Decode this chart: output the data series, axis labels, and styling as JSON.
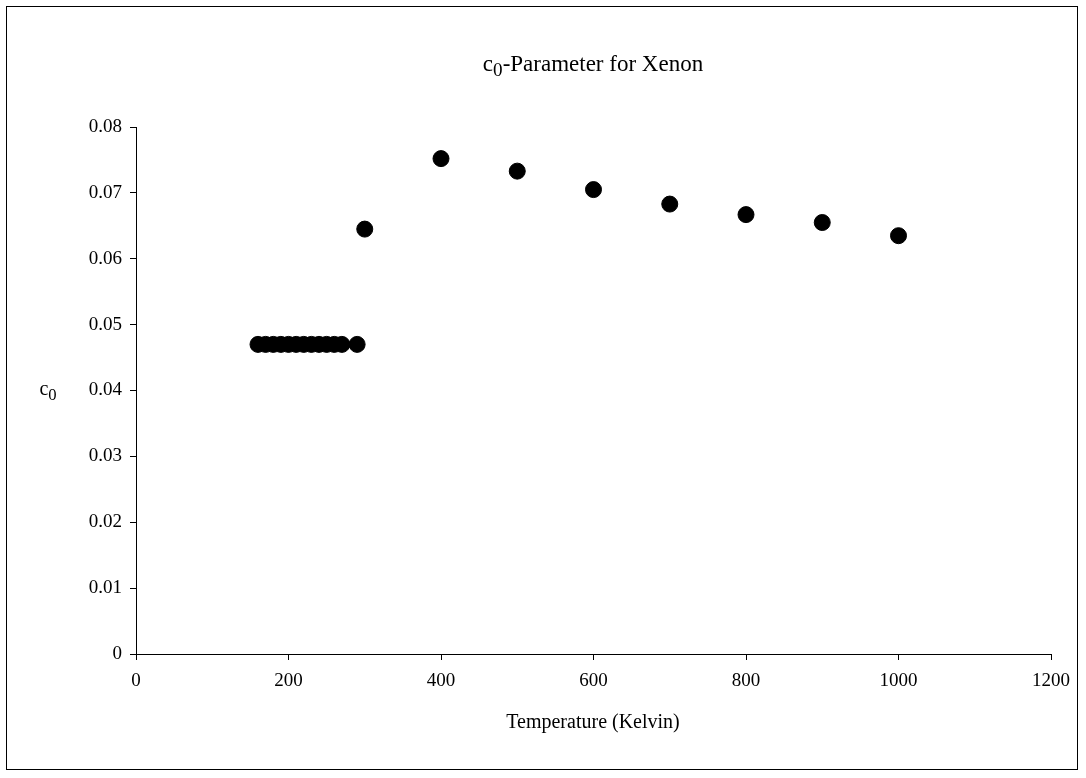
{
  "chart_data": {
    "type": "scatter",
    "title": "c$_{0}$-Parameter for Xenon",
    "xlabel": "Temperature (Kelvin)",
    "ylabel": "c$_{0}$",
    "x": [
      160,
      170,
      180,
      190,
      200,
      210,
      220,
      230,
      240,
      250,
      260,
      270,
      290,
      300,
      400,
      500,
      600,
      700,
      800,
      900,
      1000
    ],
    "values": [
      0.047,
      0.047,
      0.047,
      0.047,
      0.047,
      0.047,
      0.047,
      0.047,
      0.047,
      0.047,
      0.047,
      0.047,
      0.047,
      0.0645,
      0.0752,
      0.0733,
      0.0705,
      0.0683,
      0.0667,
      0.0655,
      0.0635
    ],
    "color": "#000000",
    "marker": "circle",
    "xlim": [
      0,
      1200
    ],
    "xticks": [
      0,
      200,
      400,
      600,
      800,
      1000,
      1200
    ],
    "ylim": [
      0,
      0.08
    ],
    "yticks": [
      0,
      0.01,
      0.02,
      0.03,
      0.04,
      0.05,
      0.06,
      0.07,
      0.08
    ]
  }
}
